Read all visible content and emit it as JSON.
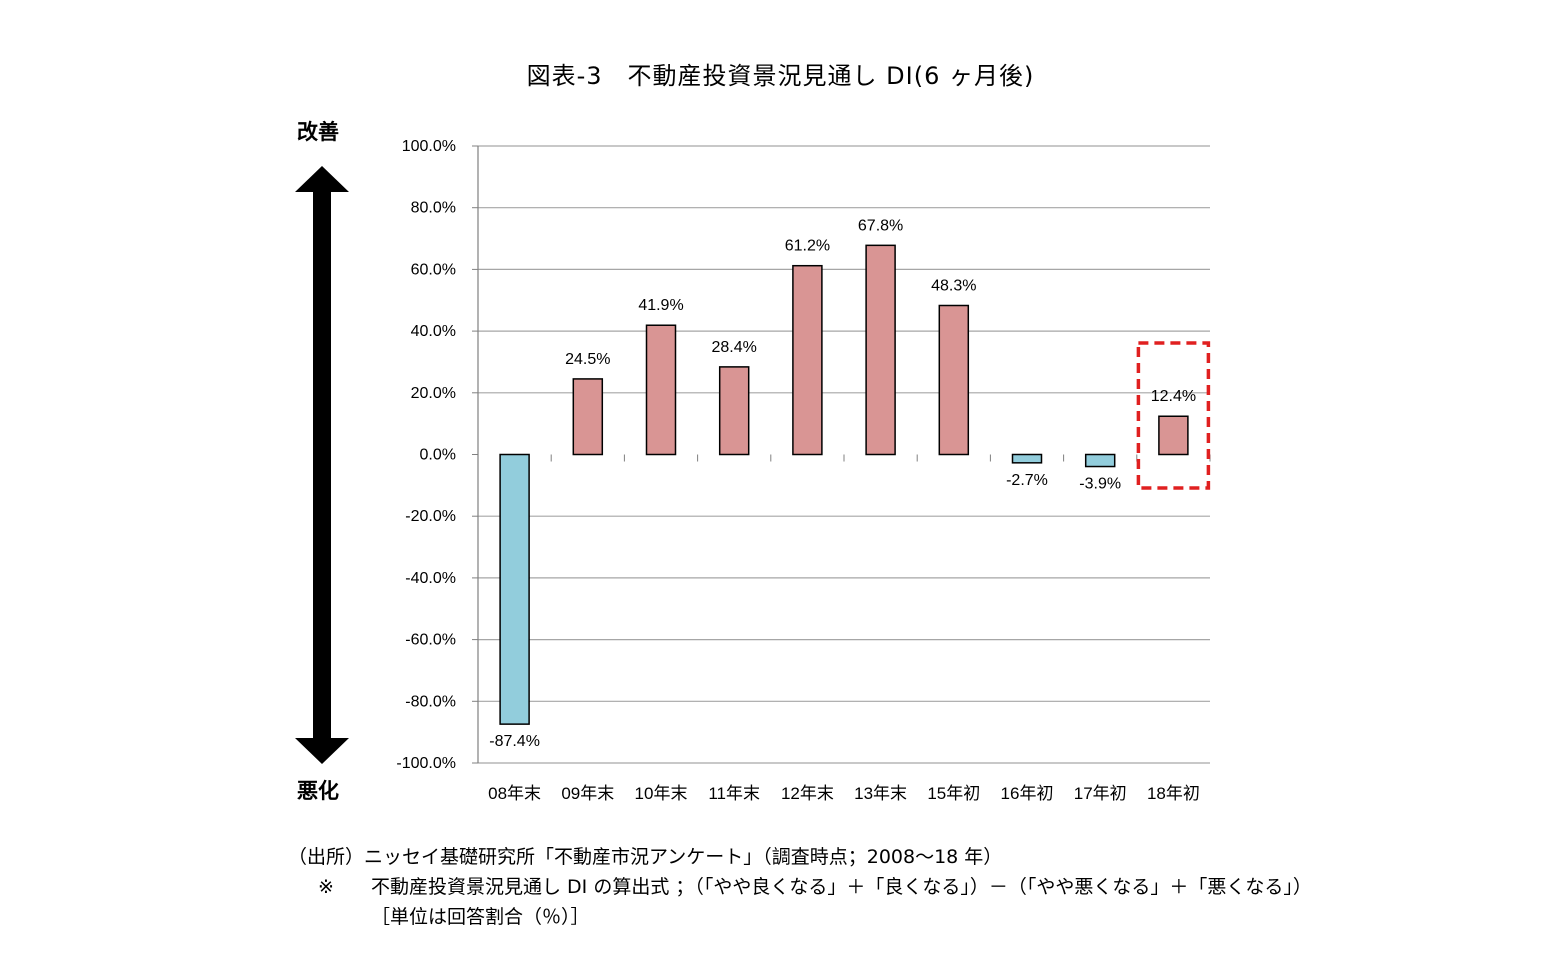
{
  "title": "図表-3　不動産投資景況見通し DI(6 ヶ月後)",
  "axis_top_label": "改善",
  "axis_bottom_label": "悪化",
  "chart_data": {
    "type": "bar",
    "categories": [
      "08年末",
      "09年末",
      "10年末",
      "11年末",
      "12年末",
      "13年末",
      "15年初",
      "16年初",
      "17年初",
      "18年初"
    ],
    "values": [
      -87.4,
      24.5,
      41.9,
      28.4,
      61.2,
      67.8,
      48.3,
      -2.7,
      -3.9,
      12.4
    ],
    "data_labels": [
      "-87.4%",
      "24.5%",
      "41.9%",
      "28.4%",
      "61.2%",
      "67.8%",
      "48.3%",
      "-2.7%",
      "-3.9%",
      "12.4%"
    ],
    "ylim": [
      -100,
      100
    ],
    "y_ticks": [
      100,
      80,
      60,
      40,
      20,
      0,
      -20,
      -40,
      -60,
      -80,
      -100
    ],
    "y_tick_labels": [
      "100.0%",
      "80.0%",
      "60.0%",
      "40.0%",
      "20.0%",
      "0.0%",
      "-20.0%",
      "-40.0%",
      "-60.0%",
      "-80.0%",
      "-100.0%"
    ],
    "grid": true,
    "highlighted_category": "18年初",
    "colors": {
      "positive": "#D99594",
      "negative": "#92CDDC",
      "highlight_box": "#E02020",
      "grid": "#A6A6A6"
    }
  },
  "notes": {
    "source": "（出所）ニッセイ基礎研究所「不動産市況アンケート」（調査時点；2008～18 年）",
    "formula_mark": "※",
    "formula": "不動産投資景況見通し DI の算出式 ；（「やや良くなる」＋「良くなる」）－（「やや悪くなる」＋「悪くなる」）",
    "unit": "［単位は回答割合（％）］"
  }
}
